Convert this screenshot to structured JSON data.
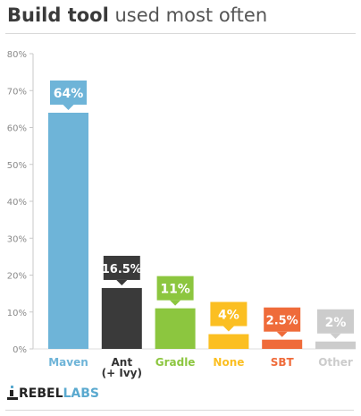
{
  "title": {
    "bold": "Build tool",
    "rest": "used most often"
  },
  "chart_data": {
    "type": "bar",
    "title": "Build tool used most often",
    "xlabel": "",
    "ylabel": "",
    "ylim": [
      0,
      80
    ],
    "yticks": [
      "0%",
      "10%",
      "20%",
      "30%",
      "40%",
      "50%",
      "60%",
      "70%",
      "80%"
    ],
    "grid": false,
    "categories": [
      "Maven",
      "Ant (+ Ivy)",
      "Gradle",
      "None",
      "SBT",
      "Other"
    ],
    "category_lines": [
      [
        "Maven"
      ],
      [
        "Ant",
        "(+ Ivy)"
      ],
      [
        "Gradle"
      ],
      [
        "None"
      ],
      [
        "SBT"
      ],
      [
        "Other"
      ]
    ],
    "values": [
      64,
      16.5,
      11,
      4,
      2.5,
      2
    ],
    "labels": [
      "64%",
      "16.5%",
      "11%",
      "4%",
      "2.5%",
      "2%"
    ],
    "colors": [
      "#6eb4d8",
      "#3a3a3a",
      "#8cc63f",
      "#fbbf22",
      "#ef6b3a",
      "#cccccc"
    ]
  },
  "logo": {
    "part1": "REBEL",
    "part2": "LABS"
  }
}
